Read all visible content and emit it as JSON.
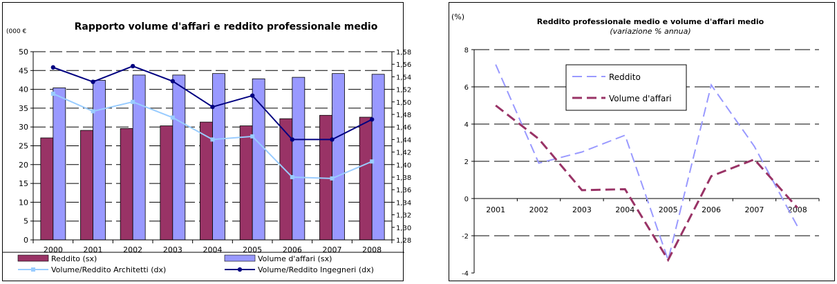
{
  "chart_data": [
    {
      "type": "bar",
      "title": "Rapporto volume d'affari e reddito professionale medio",
      "ylabel": "(000 €",
      "categories": [
        "2000",
        "2001",
        "2002",
        "2003",
        "2004",
        "2005",
        "2006",
        "2007",
        "2008"
      ],
      "y_left": {
        "lim": [
          0,
          50
        ],
        "ticks": [
          "0",
          "5",
          "10",
          "15",
          "20",
          "25",
          "30",
          "35",
          "40",
          "45",
          "50"
        ]
      },
      "y_right": {
        "lim": [
          1.28,
          1.58
        ],
        "ticks": [
          "1,28",
          "1,30",
          "1,32",
          "1,34",
          "1,36",
          "1,38",
          "1,40",
          "1,42",
          "1,44",
          "1,46",
          "1,48",
          "1,50",
          "1,52",
          "1,54",
          "1,56",
          "1,58"
        ]
      },
      "series": [
        {
          "name": "Reddito (sx)",
          "axis": "left",
          "kind": "bar",
          "color": "#993366",
          "values": [
            27.1,
            29.1,
            29.6,
            30.3,
            31.3,
            30.3,
            32.2,
            33.1,
            32.6
          ]
        },
        {
          "name": "Volume d'affari (sx)",
          "axis": "left",
          "kind": "bar",
          "color": "#9999ff",
          "values": [
            40.4,
            42.4,
            43.8,
            43.8,
            44.2,
            42.8,
            43.2,
            44.2,
            44.0
          ]
        },
        {
          "name": "Volume/Reddito Architetti (dx)",
          "axis": "right",
          "kind": "line",
          "color": "#99ccff",
          "values": [
            1.513,
            1.485,
            1.5,
            1.475,
            1.44,
            1.445,
            1.38,
            1.378,
            1.405
          ]
        },
        {
          "name": "Volume/Reddito Ingegneri (dx)",
          "axis": "right",
          "kind": "line",
          "color": "#000080",
          "values": [
            1.555,
            1.532,
            1.557,
            1.533,
            1.492,
            1.51,
            1.44,
            1.44,
            1.472
          ]
        }
      ],
      "legend": "bottom",
      "grid": true
    },
    {
      "type": "line",
      "title": "Reddito professionale medio e volume d'affari medio",
      "subtitle": "(variazione % annua)",
      "ylabel": "(%)",
      "categories": [
        "2001",
        "2002",
        "2003",
        "2004",
        "2005",
        "2006",
        "2007",
        "2008"
      ],
      "ylim": [
        -4,
        8
      ],
      "yticks": [
        "-4",
        "-2",
        "0",
        "2",
        "4",
        "6",
        "8"
      ],
      "series": [
        {
          "name": "Reddito",
          "color": "#9999ff",
          "values": [
            7.2,
            1.9,
            2.5,
            3.4,
            -3.3,
            6.1,
            2.8,
            -1.5
          ]
        },
        {
          "name": "Volume d'affari",
          "color": "#993366",
          "values": [
            5.0,
            3.2,
            0.45,
            0.5,
            -3.3,
            1.2,
            2.1,
            -0.5
          ]
        }
      ],
      "legend": "top-left",
      "grid": true
    }
  ]
}
